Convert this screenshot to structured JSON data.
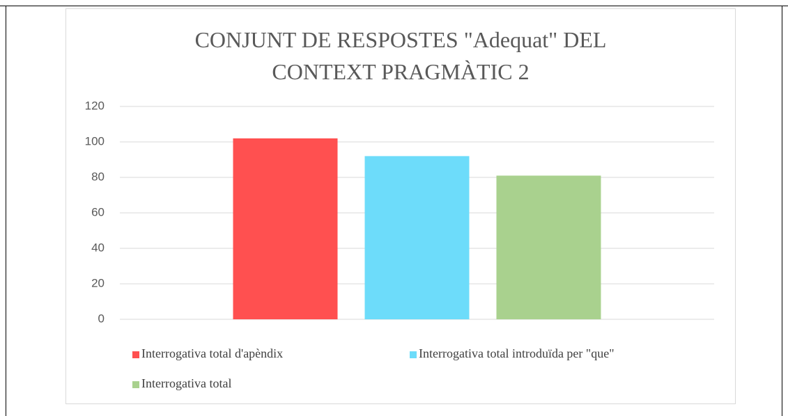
{
  "chart_data": {
    "type": "bar",
    "title": [
      "CONJUNT DE RESPOSTES \"Adequat\" DEL",
      "CONTEXT PRAGMÀTIC 2"
    ],
    "categories": [
      null
    ],
    "series": [
      {
        "name": "Interrogativa total d'apèndix",
        "color": "#ff5050",
        "values": [
          102
        ]
      },
      {
        "name": "Interrogativa total introduïda per \"que\"",
        "color": "#6ddcfa",
        "values": [
          92
        ]
      },
      {
        "name": "Interrogativa total",
        "color": "#a9d18e",
        "values": [
          81
        ]
      }
    ],
    "ylim": [
      0,
      120
    ],
    "yticks": [
      0,
      20,
      40,
      60,
      80,
      100,
      120
    ],
    "grid": true,
    "legend": "bottom"
  }
}
